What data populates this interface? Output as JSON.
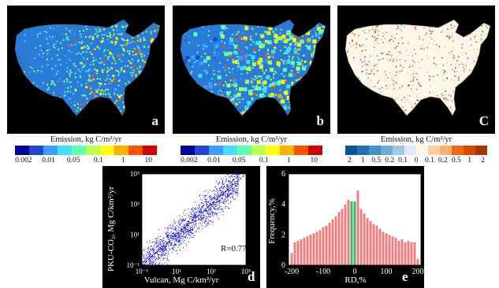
{
  "panels": {
    "a": {
      "label": "a"
    },
    "b": {
      "label": "b"
    },
    "c": {
      "label": "C"
    },
    "d": {
      "label": "d"
    },
    "e": {
      "label": "e"
    }
  },
  "colorbars": {
    "emission": {
      "title": "Emission, kg C/m²/yr",
      "ticks": [
        "0.002",
        "0.01",
        "0.05",
        "0.1",
        "1",
        "10"
      ],
      "colors": [
        "#0000a0",
        "#1e46d8",
        "#3c9cff",
        "#40e0ff",
        "#60ffb0",
        "#b8ff50",
        "#ffff00",
        "#ffb000",
        "#ff5000",
        "#d00000"
      ]
    },
    "difference": {
      "title": "Emission, kg C/m²/yr",
      "ticks": [
        "2",
        "1",
        "0.5",
        "0.2",
        "0.1",
        "0",
        "0.1",
        "0.2",
        "0.5",
        "1",
        "2"
      ],
      "colors": [
        "#08519c",
        "#2171b5",
        "#4292c6",
        "#6baed6",
        "#9ecae1",
        "#deebf7",
        "#fdf5e6",
        "#fdd0a2",
        "#fdae6b",
        "#f16913",
        "#d94801",
        "#a63603"
      ]
    }
  },
  "chart_data": [
    {
      "type": "scatter",
      "panel": "d",
      "xlabel": "Vulcan, Mg C/km²/yr",
      "ylabel": "PKU-CO₂, Mg C/km²/yr",
      "xscale": "log",
      "yscale": "log",
      "xlim": [
        0.1,
        100000
      ],
      "ylim": [
        0.1,
        100000
      ],
      "x_ticks": [
        "10⁻¹",
        "10¹",
        "10³",
        "10⁵"
      ],
      "y_ticks": [
        "10⁻¹",
        "10¹",
        "10³",
        "10⁵"
      ],
      "annotation": "R=0.77",
      "reference_line": "1:1 dashed",
      "point_color": "#0000ff"
    },
    {
      "type": "bar",
      "panel": "e",
      "xlabel": "RD,%",
      "ylabel": "Frequency,%",
      "xlim": [
        -210,
        210
      ],
      "ylim": [
        0,
        6
      ],
      "x_ticks": [
        "-200",
        "-100",
        "0",
        "100",
        "200"
      ],
      "y_ticks": [
        "0",
        "2",
        "4",
        "6"
      ],
      "bar_color": "#f08080",
      "highlight_color": "#3cb371",
      "bin_centers": [
        -200,
        -190,
        -180,
        -170,
        -160,
        -150,
        -140,
        -130,
        -120,
        -110,
        -100,
        -90,
        -80,
        -70,
        -60,
        -50,
        -40,
        -30,
        -20,
        -10,
        0,
        10,
        20,
        30,
        40,
        50,
        60,
        70,
        80,
        90,
        100,
        110,
        120,
        130,
        140,
        150,
        160,
        170,
        180,
        190,
        200
      ],
      "values": [
        0.8,
        1.5,
        1.6,
        1.7,
        1.8,
        1.9,
        2.0,
        2.1,
        2.2,
        2.3,
        2.5,
        2.6,
        2.8,
        3.0,
        3.2,
        3.5,
        3.7,
        4.0,
        4.3,
        4.2,
        4.2,
        4.9,
        3.7,
        3.4,
        3.1,
        2.9,
        2.7,
        2.6,
        2.4,
        2.2,
        2.1,
        2.0,
        1.9,
        1.8,
        1.6,
        1.7,
        1.5,
        1.6,
        1.5,
        1.5,
        0.4
      ],
      "highlight_bins": [
        -10,
        0
      ]
    }
  ]
}
